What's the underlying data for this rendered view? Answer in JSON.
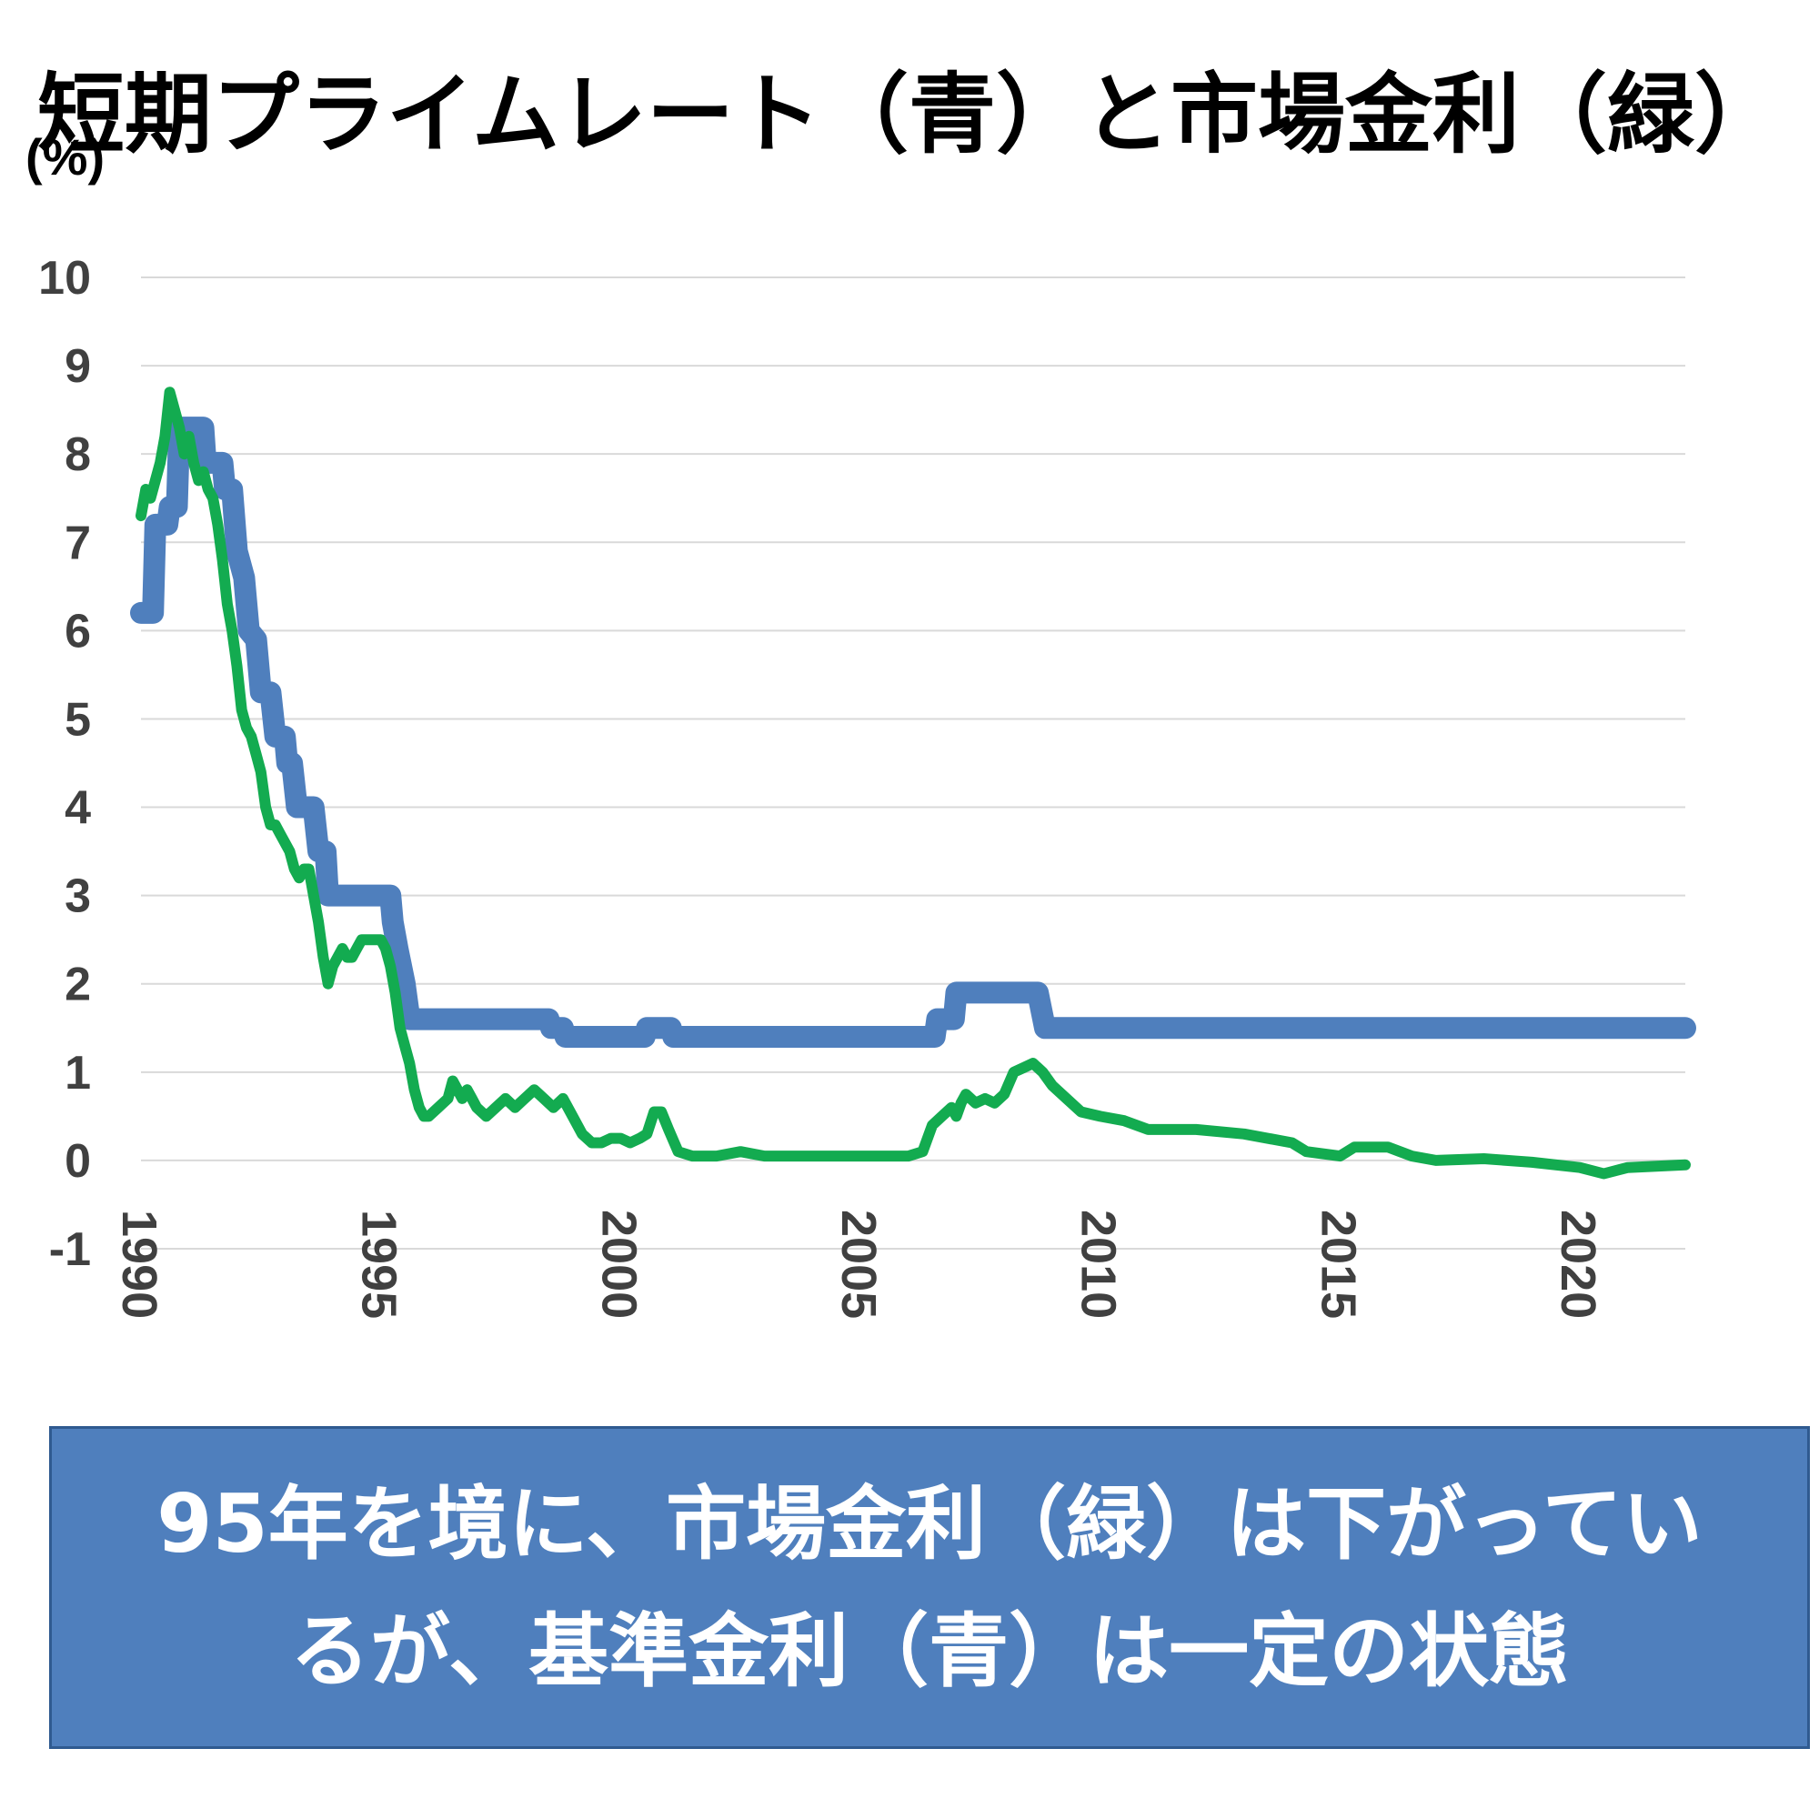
{
  "chart_data": {
    "type": "line",
    "title": "短期プライムレート（青）と市場金利（緑）",
    "ylabel": "(%)",
    "xlabel": "",
    "ylim": [
      -1,
      10
    ],
    "xlim": [
      1990,
      2022.2
    ],
    "yticks": [
      "10",
      "9",
      "8",
      "7",
      "6",
      "5",
      "4",
      "3",
      "2",
      "1",
      "0",
      "-1"
    ],
    "xticks": [
      "1990",
      "1995",
      "2000",
      "2005",
      "2010",
      "2015",
      "2020"
    ],
    "grid": true,
    "series": [
      {
        "color": "#4f7fbd",
        "points": [
          [
            1990.0,
            6.2
          ],
          [
            1990.25,
            6.2
          ],
          [
            1990.3,
            7.2
          ],
          [
            1990.55,
            7.2
          ],
          [
            1990.6,
            7.4
          ],
          [
            1990.75,
            7.4
          ],
          [
            1990.8,
            8.3
          ],
          [
            1991.3,
            8.3
          ],
          [
            1991.35,
            7.9
          ],
          [
            1991.7,
            7.9
          ],
          [
            1991.75,
            7.6
          ],
          [
            1991.9,
            7.6
          ],
          [
            1992.0,
            6.9
          ],
          [
            1992.15,
            6.6
          ],
          [
            1992.25,
            6.0
          ],
          [
            1992.4,
            5.9
          ],
          [
            1992.5,
            5.3
          ],
          [
            1992.7,
            5.3
          ],
          [
            1992.8,
            4.8
          ],
          [
            1993.0,
            4.8
          ],
          [
            1993.05,
            4.5
          ],
          [
            1993.15,
            4.5
          ],
          [
            1993.25,
            4.0
          ],
          [
            1993.6,
            4.0
          ],
          [
            1993.7,
            3.5
          ],
          [
            1993.85,
            3.5
          ],
          [
            1993.9,
            3.0
          ],
          [
            1995.2,
            3.0
          ],
          [
            1995.25,
            2.7
          ],
          [
            1995.35,
            2.4
          ],
          [
            1995.5,
            2.0
          ],
          [
            1995.6,
            1.6
          ],
          [
            1998.5,
            1.6
          ],
          [
            1998.55,
            1.5
          ],
          [
            1998.8,
            1.5
          ],
          [
            1998.85,
            1.4
          ],
          [
            2000.5,
            1.4
          ],
          [
            2000.55,
            1.5
          ],
          [
            2001.05,
            1.5
          ],
          [
            2001.1,
            1.4
          ],
          [
            2006.55,
            1.4
          ],
          [
            2006.6,
            1.6
          ],
          [
            2006.95,
            1.6
          ],
          [
            2007.0,
            1.9
          ],
          [
            2008.7,
            1.9
          ],
          [
            2008.85,
            1.5
          ],
          [
            2008.9,
            1.5
          ],
          [
            2009.0,
            1.5
          ],
          [
            2022.2,
            1.5
          ]
        ]
      },
      {
        "color": "#13ab50",
        "points": [
          [
            1990.0,
            7.3
          ],
          [
            1990.1,
            7.6
          ],
          [
            1990.2,
            7.5
          ],
          [
            1990.3,
            7.7
          ],
          [
            1990.4,
            7.9
          ],
          [
            1990.5,
            8.2
          ],
          [
            1990.6,
            8.7
          ],
          [
            1990.7,
            8.5
          ],
          [
            1990.8,
            8.3
          ],
          [
            1990.9,
            8.0
          ],
          [
            1991.0,
            8.2
          ],
          [
            1991.1,
            7.9
          ],
          [
            1991.2,
            7.7
          ],
          [
            1991.3,
            7.8
          ],
          [
            1991.4,
            7.6
          ],
          [
            1991.5,
            7.5
          ],
          [
            1991.6,
            7.2
          ],
          [
            1991.7,
            6.8
          ],
          [
            1991.8,
            6.3
          ],
          [
            1991.9,
            6.0
          ],
          [
            1992.0,
            5.6
          ],
          [
            1992.1,
            5.1
          ],
          [
            1992.2,
            4.9
          ],
          [
            1992.3,
            4.8
          ],
          [
            1992.4,
            4.6
          ],
          [
            1992.5,
            4.4
          ],
          [
            1992.6,
            4.0
          ],
          [
            1992.7,
            3.8
          ],
          [
            1992.8,
            3.8
          ],
          [
            1992.9,
            3.7
          ],
          [
            1993.0,
            3.6
          ],
          [
            1993.1,
            3.5
          ],
          [
            1993.2,
            3.3
          ],
          [
            1993.3,
            3.2
          ],
          [
            1993.4,
            3.3
          ],
          [
            1993.5,
            3.3
          ],
          [
            1993.6,
            3.0
          ],
          [
            1993.7,
            2.7
          ],
          [
            1993.8,
            2.3
          ],
          [
            1993.9,
            2.0
          ],
          [
            1994.0,
            2.2
          ],
          [
            1994.1,
            2.3
          ],
          [
            1994.2,
            2.4
          ],
          [
            1994.3,
            2.3
          ],
          [
            1994.4,
            2.3
          ],
          [
            1994.5,
            2.4
          ],
          [
            1994.6,
            2.5
          ],
          [
            1994.8,
            2.5
          ],
          [
            1995.0,
            2.5
          ],
          [
            1995.1,
            2.4
          ],
          [
            1995.2,
            2.2
          ],
          [
            1995.3,
            1.9
          ],
          [
            1995.4,
            1.5
          ],
          [
            1995.5,
            1.3
          ],
          [
            1995.6,
            1.1
          ],
          [
            1995.7,
            0.8
          ],
          [
            1995.8,
            0.6
          ],
          [
            1995.9,
            0.5
          ],
          [
            1996.0,
            0.5
          ],
          [
            1996.2,
            0.6
          ],
          [
            1996.4,
            0.7
          ],
          [
            1996.5,
            0.9
          ],
          [
            1996.7,
            0.7
          ],
          [
            1996.8,
            0.8
          ],
          [
            1996.9,
            0.7
          ],
          [
            1997.0,
            0.6
          ],
          [
            1997.2,
            0.5
          ],
          [
            1997.4,
            0.6
          ],
          [
            1997.6,
            0.7
          ],
          [
            1997.8,
            0.6
          ],
          [
            1998.0,
            0.7
          ],
          [
            1998.2,
            0.8
          ],
          [
            1998.4,
            0.7
          ],
          [
            1998.6,
            0.6
          ],
          [
            1998.8,
            0.7
          ],
          [
            1999.0,
            0.5
          ],
          [
            1999.2,
            0.3
          ],
          [
            1999.4,
            0.2
          ],
          [
            1999.6,
            0.2
          ],
          [
            1999.8,
            0.25
          ],
          [
            2000.0,
            0.25
          ],
          [
            2000.2,
            0.2
          ],
          [
            2000.4,
            0.25
          ],
          [
            2000.55,
            0.3
          ],
          [
            2000.7,
            0.55
          ],
          [
            2000.85,
            0.55
          ],
          [
            2001.0,
            0.35
          ],
          [
            2001.2,
            0.1
          ],
          [
            2001.5,
            0.05
          ],
          [
            2002.0,
            0.05
          ],
          [
            2002.5,
            0.1
          ],
          [
            2003.0,
            0.05
          ],
          [
            2004.0,
            0.05
          ],
          [
            2005.0,
            0.05
          ],
          [
            2006.0,
            0.05
          ],
          [
            2006.3,
            0.1
          ],
          [
            2006.5,
            0.4
          ],
          [
            2006.7,
            0.5
          ],
          [
            2006.9,
            0.6
          ],
          [
            2007.0,
            0.5
          ],
          [
            2007.1,
            0.65
          ],
          [
            2007.2,
            0.75
          ],
          [
            2007.4,
            0.65
          ],
          [
            2007.6,
            0.7
          ],
          [
            2007.8,
            0.65
          ],
          [
            2008.0,
            0.75
          ],
          [
            2008.2,
            1.0
          ],
          [
            2008.4,
            1.05
          ],
          [
            2008.6,
            1.1
          ],
          [
            2008.8,
            1.0
          ],
          [
            2009.0,
            0.85
          ],
          [
            2009.3,
            0.7
          ],
          [
            2009.6,
            0.55
          ],
          [
            2010.0,
            0.5
          ],
          [
            2010.5,
            0.45
          ],
          [
            2011.0,
            0.35
          ],
          [
            2012.0,
            0.35
          ],
          [
            2013.0,
            0.3
          ],
          [
            2014.0,
            0.2
          ],
          [
            2014.3,
            0.1
          ],
          [
            2015.0,
            0.05
          ],
          [
            2015.3,
            0.15
          ],
          [
            2016.0,
            0.15
          ],
          [
            2016.5,
            0.05
          ],
          [
            2017.0,
            0.0
          ],
          [
            2018.0,
            0.02
          ],
          [
            2019.0,
            -0.02
          ],
          [
            2020.0,
            -0.08
          ],
          [
            2020.5,
            -0.15
          ],
          [
            2021.0,
            -0.08
          ],
          [
            2022.2,
            -0.05
          ]
        ]
      }
    ]
  },
  "caption": {
    "line1": "95年を境に、市場金利（緑）は下がってい",
    "line2": "るが、基準金利（青）は一定の状態"
  }
}
